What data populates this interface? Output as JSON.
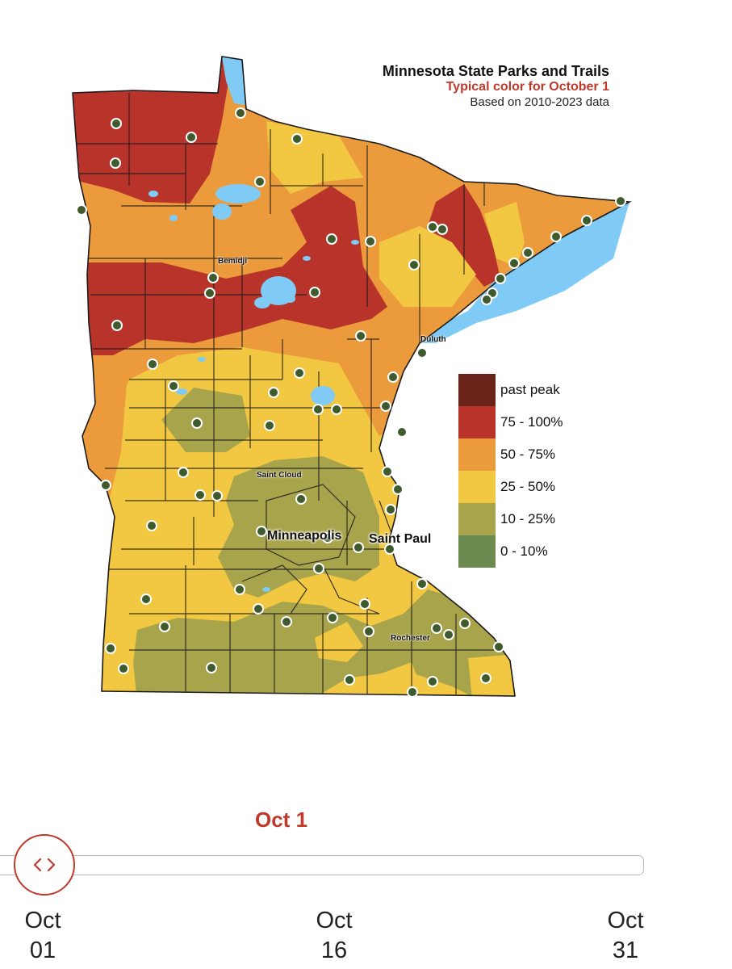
{
  "map": {
    "title": "Minnesota State Parks and Trails",
    "subtitle": "Typical color for October 1",
    "source_note": "Based on 2010-2023 data",
    "cities": {
      "bemidji": "Bemidji",
      "duluth": "Duluth",
      "saint_cloud": "Saint Cloud",
      "minneapolis": "Minneapolis",
      "saint_paul": "Saint Paul",
      "rochester": "Rochester"
    },
    "legend": [
      {
        "label": "past peak",
        "color": "#6b2419"
      },
      {
        "label": "75 - 100%",
        "color": "#b8342b"
      },
      {
        "label": "50 - 75%",
        "color": "#eb9b3c"
      },
      {
        "label": "25 - 50%",
        "color": "#f2c842"
      },
      {
        "label": "10 - 25%",
        "color": "#a8a44c"
      },
      {
        "label": "0 - 10%",
        "color": "#6a8a50"
      }
    ],
    "water_color": "#7fcbf6",
    "park_marker_color": "#3f5a2c"
  },
  "slider": {
    "current_date": "Oct 1",
    "value_fraction": 0.0,
    "ticks": [
      {
        "month": "Oct",
        "day": "01"
      },
      {
        "month": "Oct",
        "day": "16"
      },
      {
        "month": "Oct",
        "day": "31"
      }
    ],
    "handle_icon": "code-chevrons-icon",
    "accent_color": "#c0392b"
  }
}
